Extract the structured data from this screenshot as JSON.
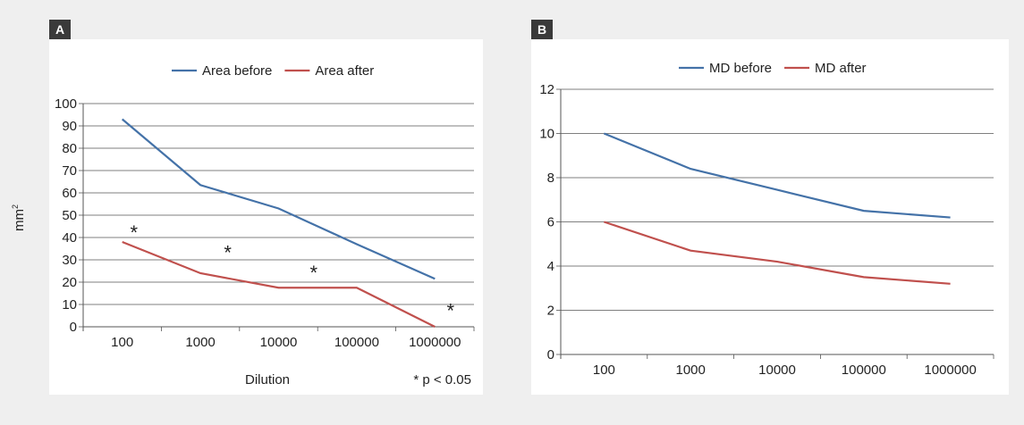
{
  "panels": [
    {
      "label": "A",
      "chart_data": {
        "type": "line",
        "categories": [
          "100",
          "1000",
          "10000",
          "100000",
          "1000000"
        ],
        "series": [
          {
            "name": "Area before",
            "values": [
              93,
              63.5,
              53,
              37,
              21.5
            ],
            "color": "#4472a8"
          },
          {
            "name": "Area after",
            "values": [
              38,
              24,
              17.5,
              17.5,
              0
            ],
            "color": "#c0504d"
          }
        ],
        "ylim": [
          0,
          100
        ],
        "yticks": [
          0,
          10,
          20,
          30,
          40,
          50,
          60,
          70,
          80,
          90,
          100
        ],
        "xlabel": "Dilution",
        "ylabel_base": "mm",
        "ylabel_sup": "2",
        "legend": "top",
        "grid": true,
        "annotations": [
          {
            "text": "*",
            "x": 0.15,
            "y": 44
          },
          {
            "text": "*",
            "x": 1.35,
            "y": 35
          },
          {
            "text": "*",
            "x": 2.45,
            "y": 26
          },
          {
            "text": "*",
            "x": 4.2,
            "y": 9
          }
        ],
        "note": "* p < 0.05"
      }
    },
    {
      "label": "B",
      "chart_data": {
        "type": "line",
        "categories": [
          "100",
          "1000",
          "10000",
          "100000",
          "1000000"
        ],
        "series": [
          {
            "name": "MD before",
            "values": [
              10,
              8.4,
              7.45,
              6.5,
              6.2
            ],
            "color": "#4472a8"
          },
          {
            "name": "MD after",
            "values": [
              6,
              4.7,
              4.2,
              3.5,
              3.2
            ],
            "color": "#c0504d"
          }
        ],
        "ylim": [
          0,
          12
        ],
        "yticks": [
          0,
          2,
          4,
          6,
          8,
          10,
          12
        ],
        "legend": "top",
        "grid": true
      }
    }
  ]
}
